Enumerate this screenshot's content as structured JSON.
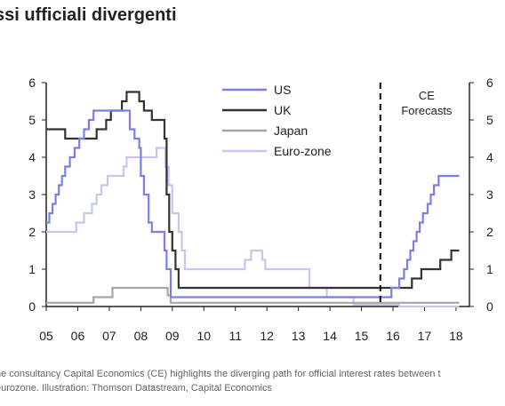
{
  "title": "ssi ufficiali divergenti",
  "caption": {
    "line1": "he consultancy Capital Economics (CE) highlights the diverging path for official interest rates between t",
    "line2": "eurozone. Illustration: Thomson Datastream, Capital Economics"
  },
  "chart_data": {
    "type": "line",
    "xlabel": "",
    "ylabel": "",
    "xlim": [
      2005,
      2018.2
    ],
    "ylim": [
      0,
      6
    ],
    "x_tick_labels": [
      "05",
      "06",
      "07",
      "08",
      "09",
      "10",
      "11",
      "12",
      "13",
      "14",
      "15",
      "16",
      "17",
      "18"
    ],
    "x_tick_values": [
      2005,
      2006,
      2007,
      2008,
      2009,
      2010,
      2011,
      2012,
      2013,
      2014,
      2015,
      2016,
      2017,
      2018
    ],
    "y_ticks": [
      0,
      1,
      2,
      3,
      4,
      5,
      6
    ],
    "legend_position": "top-center",
    "forecast_start": 2015.6,
    "forecast_label": [
      "CE",
      "Forecasts"
    ],
    "series": [
      {
        "name": "US",
        "color": "#7b7fe0",
        "step": true,
        "points": [
          [
            2005.0,
            2.25
          ],
          [
            2005.1,
            2.5
          ],
          [
            2005.2,
            2.75
          ],
          [
            2005.3,
            3.0
          ],
          [
            2005.4,
            3.25
          ],
          [
            2005.5,
            3.5
          ],
          [
            2005.6,
            3.75
          ],
          [
            2005.75,
            4.0
          ],
          [
            2005.9,
            4.25
          ],
          [
            2006.05,
            4.5
          ],
          [
            2006.2,
            4.75
          ],
          [
            2006.35,
            5.0
          ],
          [
            2006.5,
            5.25
          ],
          [
            2007.65,
            4.75
          ],
          [
            2007.8,
            4.5
          ],
          [
            2007.95,
            4.25
          ],
          [
            2008.0,
            3.5
          ],
          [
            2008.1,
            3.0
          ],
          [
            2008.25,
            2.25
          ],
          [
            2008.35,
            2.0
          ],
          [
            2008.75,
            1.5
          ],
          [
            2008.82,
            1.0
          ],
          [
            2008.95,
            0.25
          ],
          [
            2015.95,
            0.5
          ],
          [
            2016.2,
            0.75
          ],
          [
            2016.35,
            1.0
          ],
          [
            2016.45,
            1.25
          ],
          [
            2016.55,
            1.5
          ],
          [
            2016.65,
            1.75
          ],
          [
            2016.75,
            2.0
          ],
          [
            2016.85,
            2.25
          ],
          [
            2016.95,
            2.5
          ],
          [
            2017.1,
            2.75
          ],
          [
            2017.2,
            3.0
          ],
          [
            2017.3,
            3.25
          ],
          [
            2017.45,
            3.5
          ],
          [
            2018.1,
            3.5
          ]
        ]
      },
      {
        "name": "UK",
        "color": "#333333",
        "step": true,
        "points": [
          [
            2005.0,
            4.75
          ],
          [
            2005.6,
            4.5
          ],
          [
            2006.6,
            4.75
          ],
          [
            2006.9,
            5.0
          ],
          [
            2007.05,
            5.25
          ],
          [
            2007.4,
            5.5
          ],
          [
            2007.55,
            5.75
          ],
          [
            2007.95,
            5.5
          ],
          [
            2008.1,
            5.25
          ],
          [
            2008.35,
            5.0
          ],
          [
            2008.75,
            4.5
          ],
          [
            2008.82,
            3.0
          ],
          [
            2008.9,
            2.0
          ],
          [
            2009.0,
            1.5
          ],
          [
            2009.1,
            1.0
          ],
          [
            2009.2,
            0.5
          ],
          [
            2016.6,
            0.75
          ],
          [
            2016.9,
            1.0
          ],
          [
            2017.5,
            1.25
          ],
          [
            2017.85,
            1.5
          ],
          [
            2018.1,
            1.5
          ]
        ]
      },
      {
        "name": "Japan",
        "color": "#a6a6a6",
        "step": true,
        "points": [
          [
            2005.0,
            0.1
          ],
          [
            2006.5,
            0.25
          ],
          [
            2007.1,
            0.5
          ],
          [
            2008.85,
            0.3
          ],
          [
            2008.95,
            0.1
          ],
          [
            2018.1,
            0.1
          ]
        ]
      },
      {
        "name": "Euro-zone",
        "color": "#c6c6f2",
        "step": true,
        "points": [
          [
            2005.0,
            2.0
          ],
          [
            2005.95,
            2.25
          ],
          [
            2006.2,
            2.5
          ],
          [
            2006.45,
            2.75
          ],
          [
            2006.6,
            3.0
          ],
          [
            2006.75,
            3.25
          ],
          [
            2006.95,
            3.5
          ],
          [
            2007.45,
            3.75
          ],
          [
            2007.55,
            4.0
          ],
          [
            2008.5,
            4.25
          ],
          [
            2008.78,
            3.75
          ],
          [
            2008.88,
            3.25
          ],
          [
            2009.0,
            2.5
          ],
          [
            2009.2,
            2.0
          ],
          [
            2009.3,
            1.5
          ],
          [
            2009.4,
            1.0
          ],
          [
            2011.3,
            1.25
          ],
          [
            2011.5,
            1.5
          ],
          [
            2011.85,
            1.25
          ],
          [
            2011.95,
            1.0
          ],
          [
            2013.35,
            0.5
          ],
          [
            2013.9,
            0.25
          ],
          [
            2014.75,
            0.05
          ],
          [
            2016.2,
            0.0
          ],
          [
            2018.1,
            0.0
          ]
        ]
      }
    ]
  }
}
